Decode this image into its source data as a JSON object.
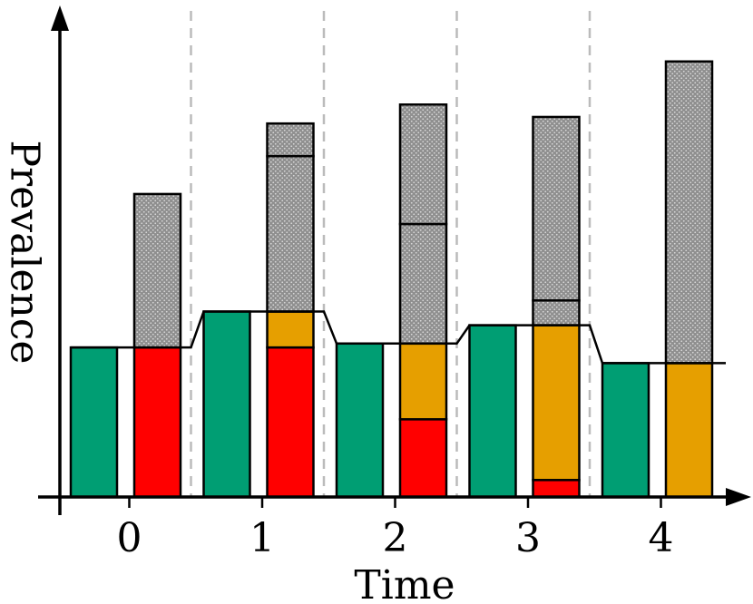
{
  "chart_data": {
    "type": "bar",
    "title": "",
    "xlabel": "Time",
    "ylabel": "Prevalence",
    "categories": [
      "0",
      "1",
      "2",
      "3",
      "4"
    ],
    "ylim": [
      0,
      10
    ],
    "grid": false,
    "divider_lines": "dashed vertical separators between time steps",
    "colors": {
      "green": "#009E73",
      "red": "#FF0000",
      "orange": "#E69F00",
      "hatched": "#9a9a9a"
    },
    "step_level": [
      2.29,
      2.84,
      2.35,
      2.63,
      2.05
    ],
    "green_bar": [
      2.29,
      2.84,
      2.35,
      2.63,
      2.05
    ],
    "stacked_bar": [
      {
        "red": 2.29,
        "orange": 0.0,
        "hatched": [
          2.35
        ]
      },
      {
        "red": 2.29,
        "orange": 0.55,
        "hatched": [
          2.38,
          0.5
        ]
      },
      {
        "red": 1.19,
        "orange": 1.16,
        "hatched": [
          1.83,
          1.83
        ]
      },
      {
        "red": 0.26,
        "orange": 2.37,
        "hatched": [
          0.38,
          2.81
        ]
      },
      {
        "red": 0.0,
        "orange": 2.05,
        "hatched": [
          4.62
        ]
      }
    ]
  }
}
